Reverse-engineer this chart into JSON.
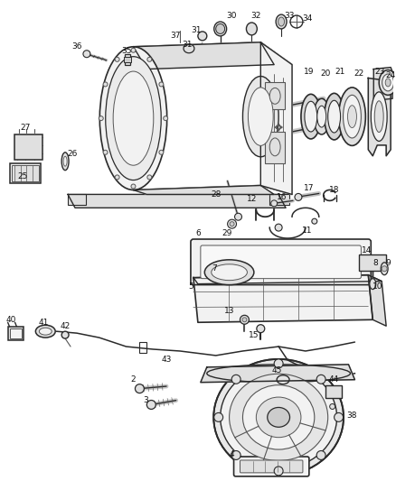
{
  "bg_color": "#ffffff",
  "fig_width": 4.38,
  "fig_height": 5.33,
  "dpi": 100,
  "lc": "#2a2a2a",
  "lc2": "#555555",
  "fc_light": "#f2f2f2",
  "fc_mid": "#e0e0e0",
  "fc_dark": "#cccccc"
}
